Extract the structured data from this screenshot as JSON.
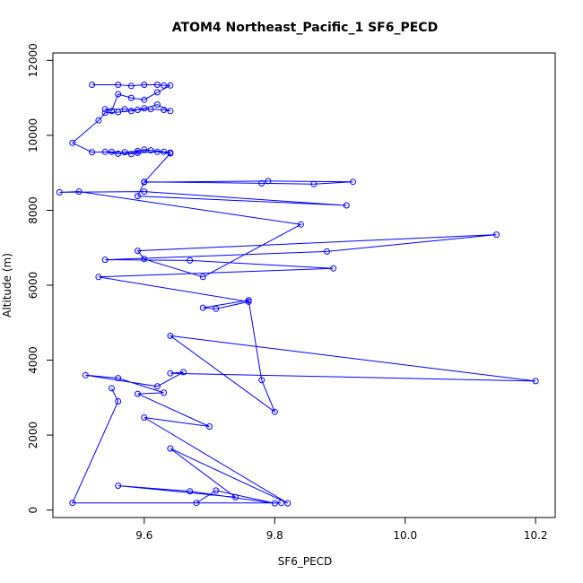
{
  "chart_data": {
    "type": "line",
    "title": "ATOM4 Northeast_Pacific_1 SF6_PECD",
    "xlabel": "SF6_PECD",
    "ylabel": "Altitude (m)",
    "xlim": [
      9.46,
      10.23
    ],
    "ylim": [
      -200,
      12200
    ],
    "xticks": [
      "9.6",
      "9.8",
      "10.0",
      "10.2"
    ],
    "yticks": [
      "0",
      "2000",
      "4000",
      "6000",
      "8000",
      "10000",
      "12000"
    ],
    "line_color": "#0000ff",
    "grid": false,
    "legend": "none",
    "series": [
      {
        "x": [
          9.52,
          9.56,
          9.58,
          9.6,
          9.62,
          9.63,
          9.64,
          9.62,
          9.6,
          9.58,
          9.56,
          9.55,
          9.54,
          9.57,
          9.59,
          9.61,
          9.63,
          9.64,
          9.62,
          9.6,
          9.58,
          9.56,
          9.54,
          9.53,
          9.49,
          9.52,
          9.55,
          9.57,
          9.59,
          9.61,
          9.63,
          9.64,
          9.6,
          9.58,
          9.56,
          9.54,
          9.59,
          9.62,
          9.64,
          9.6,
          9.79,
          9.92,
          9.86,
          9.78,
          9.6,
          9.59,
          9.91,
          9.6,
          9.47,
          9.5,
          9.84,
          9.69,
          9.6,
          9.59,
          10.14,
          9.88,
          9.54,
          9.67,
          9.89,
          9.53,
          9.76,
          9.71,
          9.69,
          9.76,
          9.78,
          9.8,
          9.64,
          10.2,
          9.64,
          9.66,
          9.62,
          9.51,
          9.56,
          9.63,
          9.59,
          9.7,
          9.6,
          9.82,
          9.64,
          9.74,
          9.56,
          9.67,
          9.8,
          9.71,
          9.68,
          9.81,
          9.49,
          9.56,
          9.55
        ],
        "y": [
          11350,
          11350,
          11320,
          11350,
          11350,
          11330,
          11330,
          11150,
          10950,
          11000,
          11100,
          10650,
          10700,
          10700,
          10680,
          10700,
          10680,
          10650,
          10820,
          10720,
          10650,
          10620,
          10600,
          10400,
          9800,
          9550,
          9560,
          9550,
          9580,
          9600,
          9560,
          9540,
          9620,
          9500,
          9510,
          9560,
          9530,
          9560,
          9520,
          8750,
          8780,
          8760,
          8700,
          8720,
          8760,
          8380,
          8130,
          8500,
          8480,
          8500,
          7620,
          6220,
          6700,
          6920,
          7350,
          6900,
          6680,
          6660,
          6450,
          6220,
          5560,
          5370,
          5400,
          5600,
          3470,
          2620,
          4650,
          3440,
          3650,
          3680,
          3300,
          3600,
          3520,
          3130,
          3100,
          2230,
          2470,
          180,
          1640,
          340,
          650,
          500,
          180,
          520,
          190,
          190,
          190,
          2900,
          3250
        ]
      }
    ]
  }
}
